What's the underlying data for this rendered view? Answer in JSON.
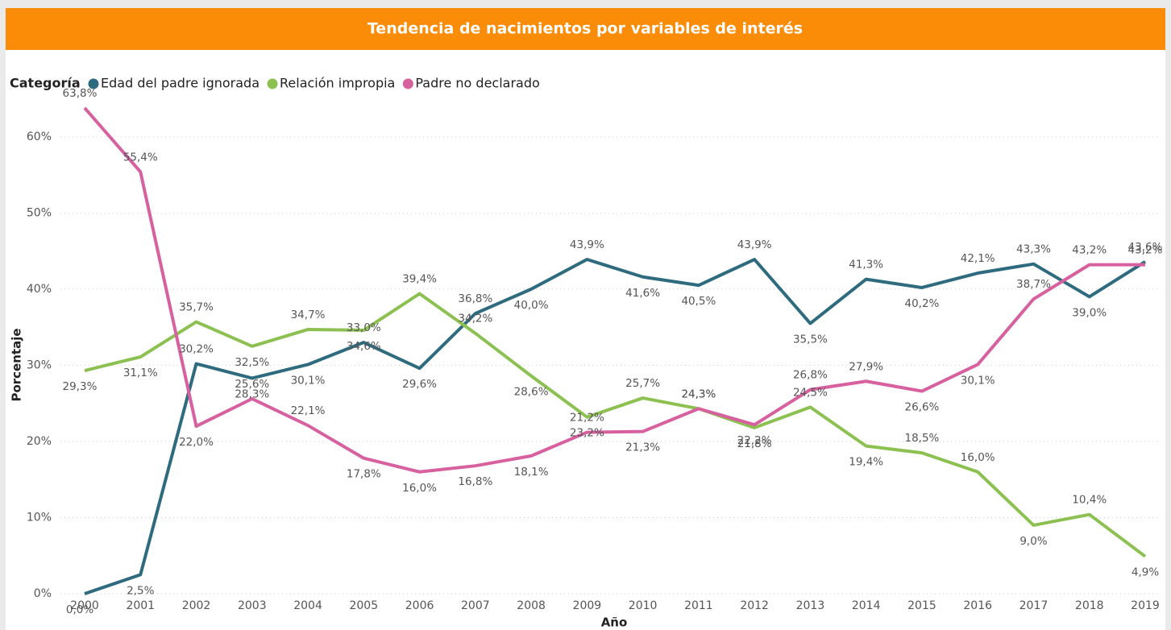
{
  "chart_data": {
    "type": "line",
    "title": "Tendencia de nacimientos por variables de interés",
    "legend_title": "Categoría",
    "x_label": "Año",
    "y_label": "Porcentaje",
    "categories": [
      "2000",
      "2001",
      "2002",
      "2003",
      "2004",
      "2005",
      "2006",
      "2007",
      "2008",
      "2009",
      "2010",
      "2011",
      "2012",
      "2013",
      "2014",
      "2015",
      "2016",
      "2017",
      "2018",
      "2019"
    ],
    "series": [
      {
        "name": "Edad del padre ignorada",
        "color": "#2e6b7e",
        "values": [
          0.0,
          2.5,
          30.2,
          28.3,
          30.1,
          33.0,
          29.6,
          36.8,
          40.0,
          43.9,
          41.6,
          40.5,
          43.9,
          35.5,
          41.3,
          40.2,
          42.1,
          43.3,
          39.0,
          43.6
        ],
        "value_labels": [
          "0,0%",
          "2,5%",
          "30,2%",
          "28,3%",
          "30,1%",
          "33,0%",
          "29,6%",
          "36,8%",
          "40,0%",
          "43,9%",
          "41,6%",
          "40,5%",
          "43,9%",
          "35,5%",
          "41,3%",
          "40,2%",
          "42,1%",
          "43,3%",
          "39,0%",
          "43,6%"
        ]
      },
      {
        "name": "Relación impropia",
        "color": "#8cc152",
        "values": [
          29.3,
          31.1,
          35.7,
          32.5,
          34.7,
          34.6,
          39.4,
          34.2,
          28.6,
          23.2,
          25.7,
          24.3,
          21.8,
          24.5,
          19.4,
          18.5,
          16.0,
          9.0,
          10.4,
          4.9
        ],
        "value_labels": [
          "29,3%",
          "31,1%",
          "35,7%",
          "32,5%",
          "34,7%",
          "34,6%",
          "39,4%",
          "34,2%",
          "28,6%",
          "23,2%",
          "25,7%",
          "24,3%",
          "21,8%",
          "24,5%",
          "19,4%",
          "18,5%",
          "16,0%",
          "9,0%",
          "10,4%",
          "4,9%"
        ]
      },
      {
        "name": "Padre no declarado",
        "color": "#d7609f",
        "values": [
          63.8,
          55.4,
          22.0,
          25.6,
          22.1,
          17.8,
          16.0,
          16.8,
          18.1,
          21.2,
          21.3,
          24.3,
          22.2,
          26.8,
          27.9,
          26.6,
          30.1,
          38.7,
          43.2,
          43.2
        ],
        "value_labels": [
          "63,8%",
          "55,4%",
          "22,0%",
          "25,6%",
          "22,1%",
          "17,8%",
          "16,0%",
          "16,8%",
          "18,1%",
          "21,2%",
          "21,3%",
          "24,3%",
          "22,2%",
          "26,8%",
          "27,9%",
          "26,6%",
          "30,1%",
          "38,7%",
          "43,2%",
          "43,2%"
        ]
      }
    ],
    "ylim": [
      0,
      64
    ],
    "yticks": [
      {
        "value": 0,
        "label": "0%"
      },
      {
        "value": 10,
        "label": "10%"
      },
      {
        "value": 20,
        "label": "20%"
      },
      {
        "value": 30,
        "label": "30%"
      },
      {
        "value": 40,
        "label": "40%"
      },
      {
        "value": 50,
        "label": "50%"
      },
      {
        "value": 60,
        "label": "60%"
      }
    ],
    "grid": true
  }
}
